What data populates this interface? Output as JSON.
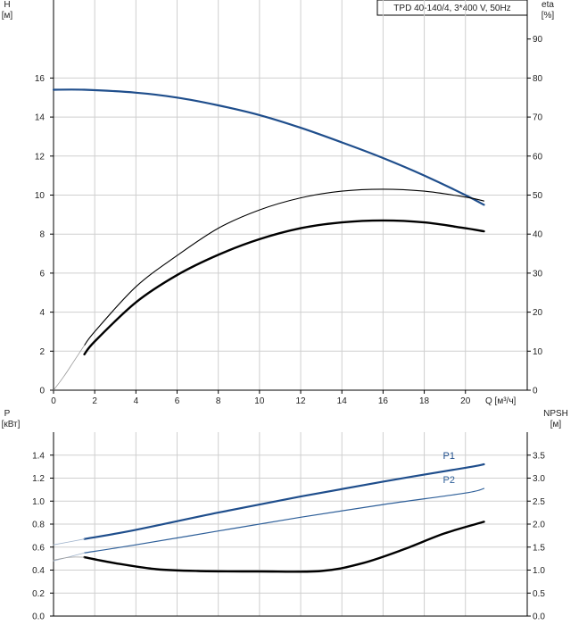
{
  "chart_data": [
    {
      "type": "line",
      "legend_box": "TPD 40-140/4, 3*400 V, 50Hz",
      "xlabel": "Q [м³/ч]",
      "ylabel_name": "H",
      "ylabel_unit": "[м]",
      "y2label_name": "eta",
      "y2label_unit": "[%]",
      "xlim": [
        0,
        23
      ],
      "ylim": [
        0,
        20
      ],
      "y2lim": [
        0,
        100
      ],
      "x_ticks": [
        0,
        2,
        4,
        6,
        8,
        10,
        12,
        14,
        16,
        18,
        20
      ],
      "y_ticks": [
        0,
        2,
        4,
        6,
        8,
        10,
        12,
        14,
        16
      ],
      "y2_ticks": [
        0,
        10,
        20,
        30,
        40,
        50,
        60,
        70,
        80,
        90
      ],
      "grid": true,
      "series": [
        {
          "axis": "left",
          "color": "#1f4e8c",
          "width": 2.2,
          "x": [
            0,
            1.5,
            4,
            6,
            8,
            10,
            12,
            14,
            16,
            18,
            20,
            20.9
          ],
          "y": [
            15.4,
            15.4,
            15.25,
            15.0,
            14.6,
            14.1,
            13.45,
            12.7,
            11.9,
            11.0,
            10.0,
            9.5
          ]
        },
        {
          "axis": "right",
          "color": "#000000",
          "width": 2.4,
          "x": [
            1.5,
            2,
            4,
            6,
            8,
            10,
            12,
            14,
            16,
            18,
            20,
            20.9
          ],
          "y": [
            9.2,
            12.5,
            22.5,
            29.5,
            34.7,
            38.7,
            41.5,
            43.0,
            43.5,
            43.0,
            41.5,
            40.7
          ]
        },
        {
          "axis": "right",
          "color": "#000000",
          "width": 1.1,
          "x": [
            1.5,
            2,
            4,
            6,
            8,
            10,
            12,
            14,
            16,
            18,
            20,
            20.9
          ],
          "y": [
            11.5,
            15.0,
            26.5,
            34.5,
            41.5,
            46.2,
            49.3,
            51.0,
            51.5,
            51.0,
            49.5,
            48.5
          ]
        },
        {
          "axis": "right",
          "color": "#999999",
          "width": 0.8,
          "x": [
            0,
            0.5,
            1,
            1.5
          ],
          "y": [
            0,
            3.5,
            7.5,
            11.5
          ]
        }
      ]
    },
    {
      "type": "line",
      "ylabel_name": "P",
      "ylabel_unit": "[кВт]",
      "y2label_name": "NPSH",
      "y2label_unit": "[м]",
      "xlim": [
        0,
        23
      ],
      "ylim": [
        0,
        1.6
      ],
      "y2lim": [
        0,
        4.0
      ],
      "x_ticks": [
        0,
        2,
        4,
        6,
        8,
        10,
        12,
        14,
        16,
        18,
        20
      ],
      "y_ticks": [
        0.0,
        0.2,
        0.4,
        0.6,
        0.8,
        1.0,
        1.2,
        1.4
      ],
      "y_tick_labels": [
        "0.0",
        "0.2",
        "0.4",
        "0.6",
        "0.8",
        "1.0",
        "1.2",
        "1.4"
      ],
      "y2_ticks": [
        0.0,
        0.5,
        1.0,
        1.5,
        2.0,
        2.5,
        3.0,
        3.5
      ],
      "y2_tick_labels": [
        "0.0",
        "0.5",
        "1.0",
        "1.5",
        "2.0",
        "2.5",
        "3.0",
        "3.5"
      ],
      "grid": true,
      "series": [
        {
          "name": "P1",
          "axis": "left",
          "color": "#1f4e8c",
          "width": 2.2,
          "x": [
            1.5,
            4,
            8,
            12,
            16,
            20,
            20.9
          ],
          "y": [
            0.67,
            0.75,
            0.9,
            1.04,
            1.17,
            1.29,
            1.32
          ]
        },
        {
          "axis": "left",
          "color": "#9fb3cc",
          "width": 0.8,
          "x": [
            0,
            1.5
          ],
          "y": [
            0.62,
            0.67
          ]
        },
        {
          "name": "P2",
          "axis": "left",
          "color": "#2e5f99",
          "width": 1.2,
          "x": [
            1.5,
            4,
            8,
            12,
            16,
            20,
            20.9
          ],
          "y": [
            0.55,
            0.62,
            0.74,
            0.86,
            0.97,
            1.07,
            1.11
          ]
        },
        {
          "axis": "left",
          "color": "#9fb3cc",
          "width": 0.8,
          "x": [
            0,
            1.5
          ],
          "y": [
            0.48,
            0.55
          ]
        },
        {
          "axis": "right",
          "color": "#000000",
          "width": 2.4,
          "x": [
            1.5,
            3,
            5,
            7,
            10,
            13,
            15,
            17,
            19,
            20.9
          ],
          "y": [
            1.28,
            1.15,
            1.02,
            0.98,
            0.97,
            0.98,
            1.15,
            1.45,
            1.8,
            2.05
          ]
        },
        {
          "axis": "right",
          "color": "#999999",
          "width": 0.8,
          "x": [
            0,
            0.8,
            1.5
          ],
          "y": [
            1.22,
            1.28,
            1.28
          ]
        }
      ]
    }
  ]
}
